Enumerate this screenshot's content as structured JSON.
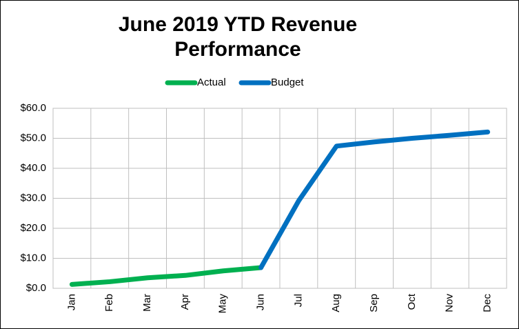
{
  "chart_data": {
    "type": "line",
    "title": "June 2019 YTD Revenue Performance",
    "categories": [
      "Jan",
      "Feb",
      "Mar",
      "Apr",
      "May",
      "Jun",
      "Jul",
      "Aug",
      "Sep",
      "Oct",
      "Nov",
      "Dec"
    ],
    "series": [
      {
        "name": "Actual",
        "color": "#00b050",
        "values": [
          1.3,
          2.2,
          3.5,
          4.3,
          5.8,
          6.9,
          null,
          null,
          null,
          null,
          null,
          null
        ]
      },
      {
        "name": "Budget",
        "color": "#0070c0",
        "values": [
          null,
          null,
          null,
          null,
          null,
          6.9,
          29.2,
          47.4,
          48.8,
          50.0,
          51.0,
          52.1
        ]
      }
    ],
    "ylim": [
      0,
      60
    ],
    "yticks": [
      {
        "value": 0,
        "label": "$0.0"
      },
      {
        "value": 10,
        "label": "$10.0"
      },
      {
        "value": 20,
        "label": "$20.0"
      },
      {
        "value": 30,
        "label": "$30.0"
      },
      {
        "value": 40,
        "label": "$40.0"
      },
      {
        "value": 50,
        "label": "$50.0"
      },
      {
        "value": 60,
        "label": "$60.0"
      }
    ],
    "grid": true,
    "legend": "top"
  }
}
